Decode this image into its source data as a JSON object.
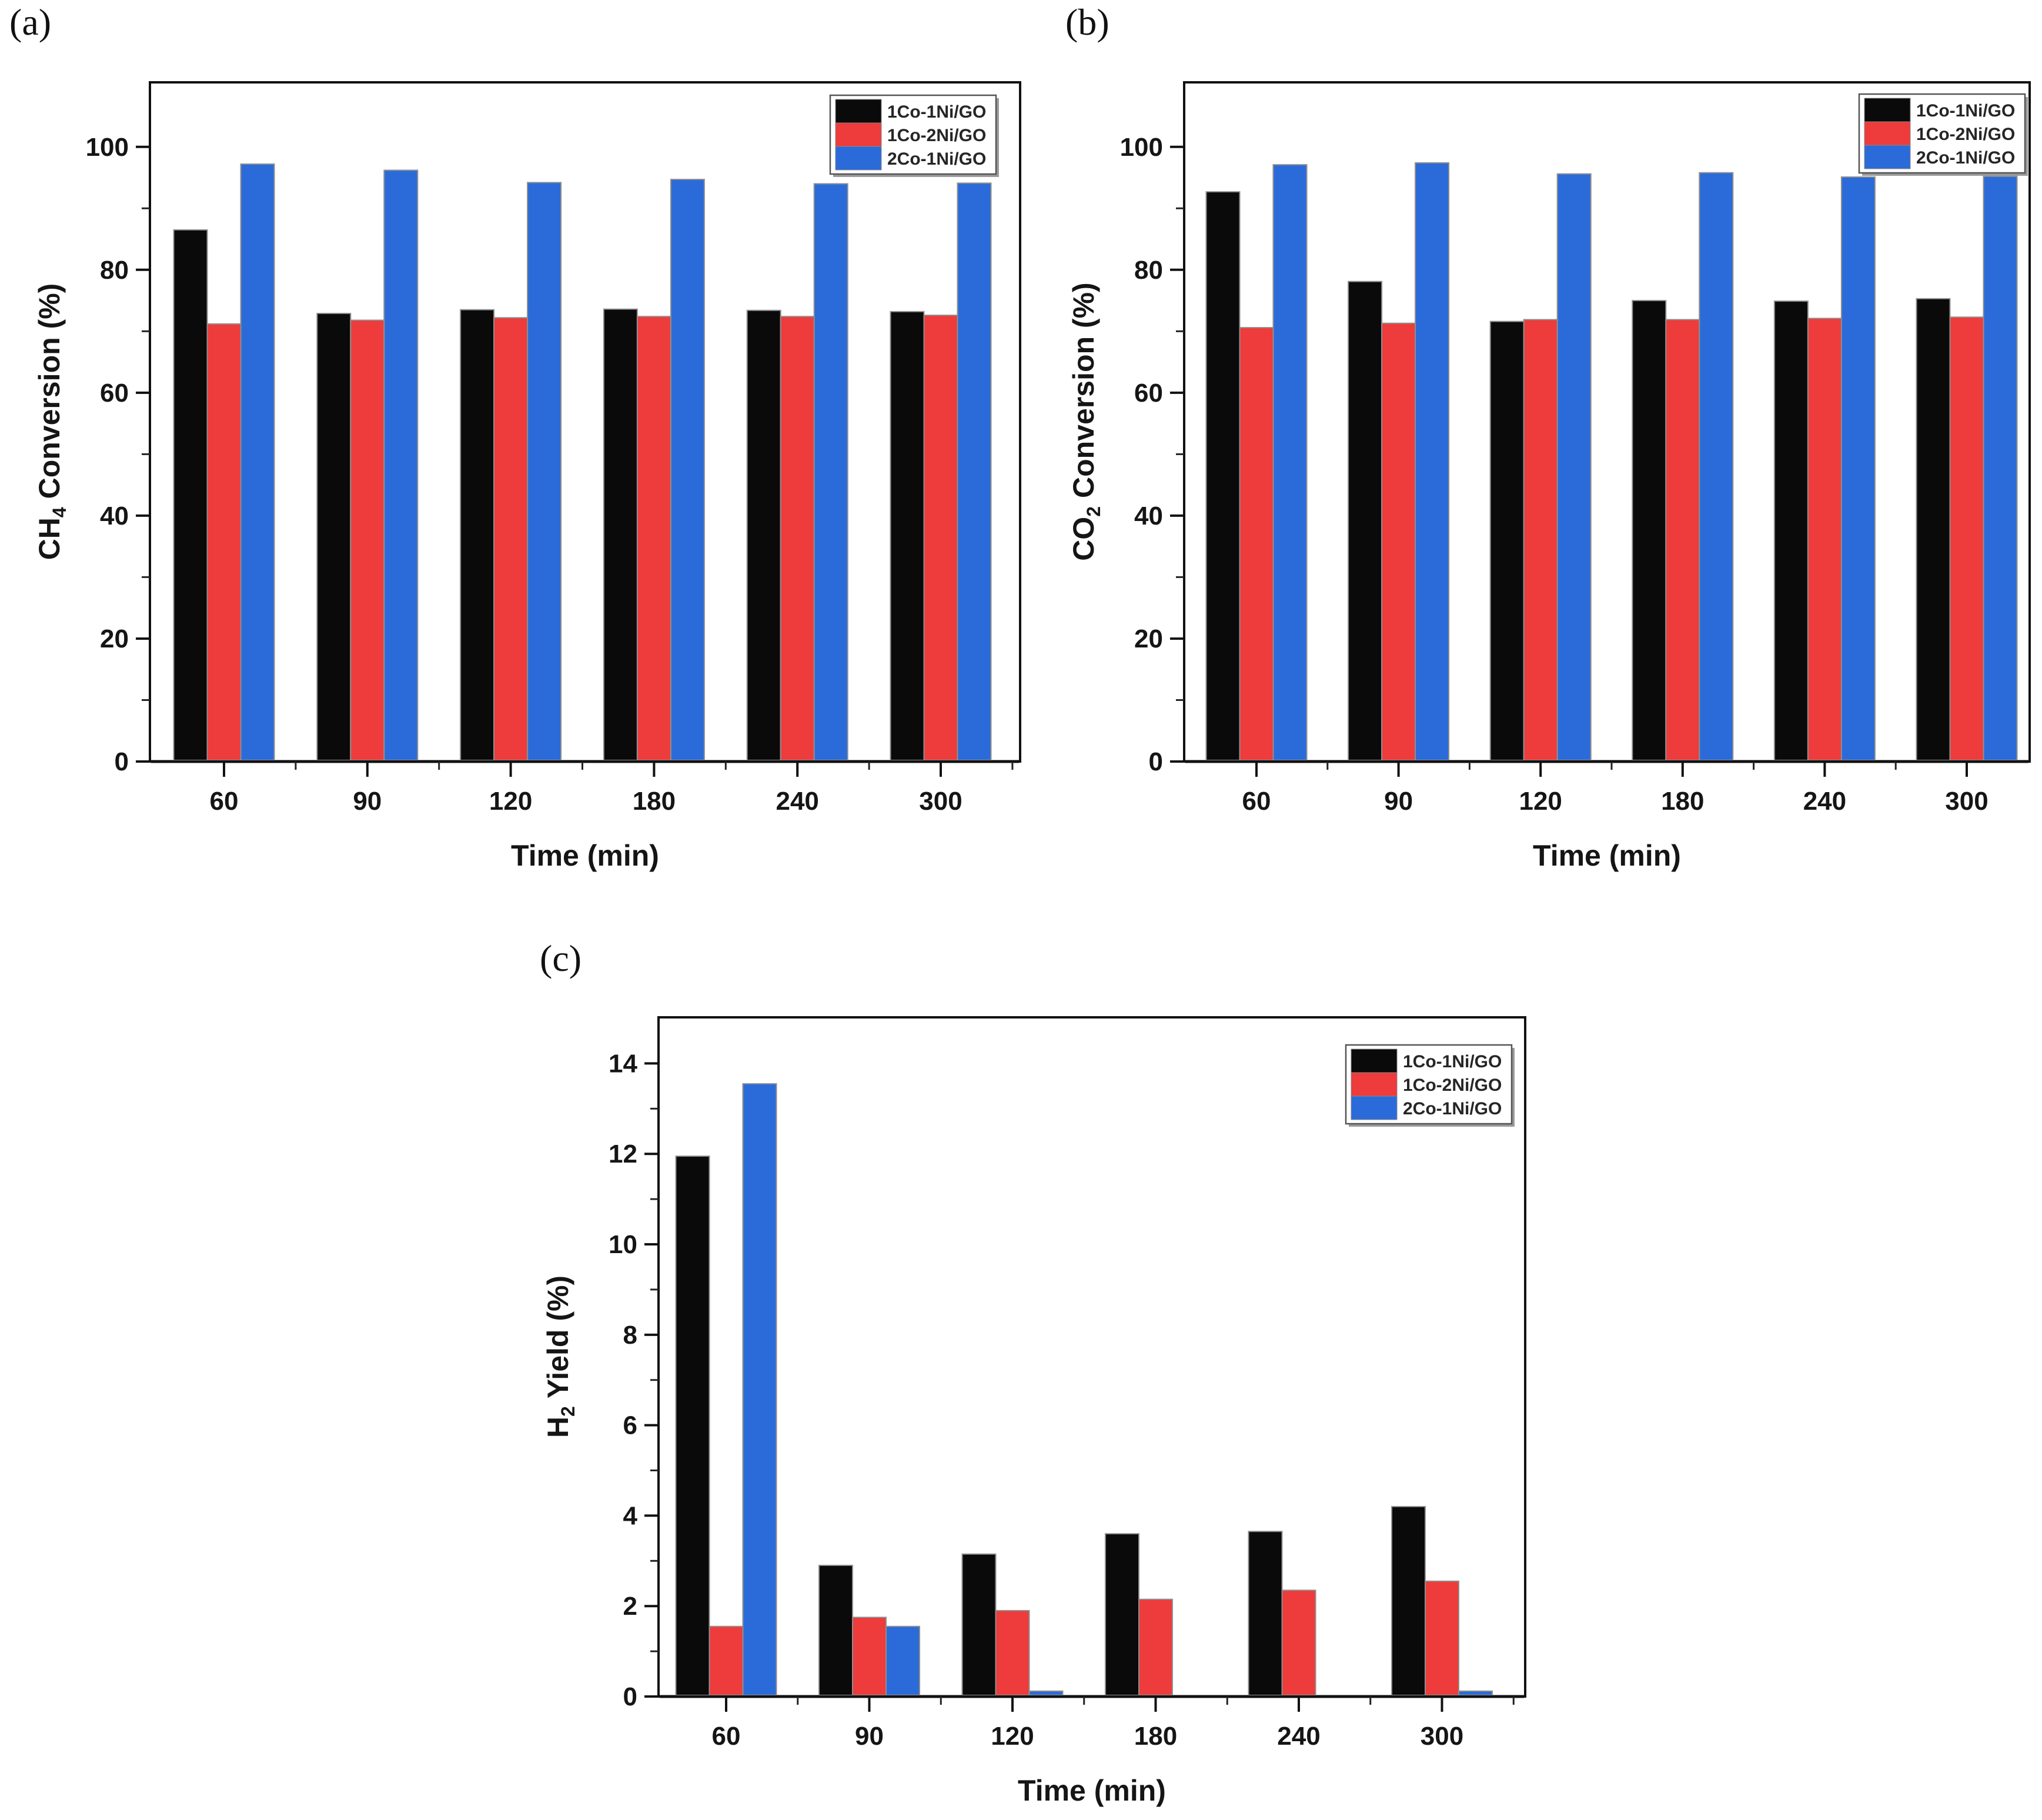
{
  "figure": {
    "background": "#ffffff",
    "series_colors": {
      "black": "#0a0a0a",
      "red": "#ee3b3b",
      "blue": "#2b6bd9"
    },
    "panel_labels": [
      "(a)",
      "(b)",
      "(c)"
    ]
  },
  "chart_data": [
    {
      "id": "a",
      "type": "bar",
      "panel_label": "(a)",
      "xlabel": "Time (min)",
      "ylabel": {
        "pre": "CH",
        "sub": "4",
        "post": " Conversion (%)"
      },
      "categories": [
        "60",
        "90",
        "120",
        "180",
        "240",
        "300"
      ],
      "series": [
        {
          "name": "1Co-1Ni/GO",
          "color": "#0a0a0a",
          "values": [
            86.5,
            72.9,
            73.5,
            73.6,
            73.4,
            73.2
          ]
        },
        {
          "name": "1Co-2Ni/GO",
          "color": "#ee3b3b",
          "values": [
            71.2,
            71.8,
            72.2,
            72.4,
            72.4,
            72.6
          ]
        },
        {
          "name": "2Co-1Ni/GO",
          "color": "#2b6bd9",
          "values": [
            97.2,
            96.2,
            94.2,
            94.7,
            94.0,
            94.1
          ]
        }
      ],
      "yticks": [
        0,
        20,
        40,
        60,
        80,
        100
      ],
      "yticks_minor": [
        10,
        30,
        50,
        70,
        90,
        110
      ],
      "ylim": [
        0,
        110.5
      ],
      "grid": false,
      "legend_position": "top-right-inside"
    },
    {
      "id": "b",
      "type": "bar",
      "panel_label": "(b)",
      "xlabel": "Time (min)",
      "ylabel": {
        "pre": "CO",
        "sub": "2",
        "post": " Conversion (%)"
      },
      "categories": [
        "60",
        "90",
        "120",
        "180",
        "240",
        "300"
      ],
      "series": [
        {
          "name": "1Co-1Ni/GO",
          "color": "#0a0a0a",
          "values": [
            92.7,
            78.1,
            71.6,
            75.0,
            74.9,
            75.3
          ]
        },
        {
          "name": "1Co-2Ni/GO",
          "color": "#ee3b3b",
          "values": [
            70.6,
            71.3,
            71.9,
            71.9,
            72.1,
            72.3
          ]
        },
        {
          "name": "2Co-1Ni/GO",
          "color": "#2b6bd9",
          "values": [
            97.1,
            97.4,
            95.6,
            95.8,
            95.1,
            95.2
          ]
        }
      ],
      "yticks": [
        0,
        20,
        40,
        60,
        80,
        100
      ],
      "yticks_minor": [
        10,
        30,
        50,
        70,
        90,
        110
      ],
      "ylim": [
        0,
        110.5
      ],
      "grid": false,
      "legend_position": "top-right-inside"
    },
    {
      "id": "c",
      "type": "bar",
      "panel_label": "(c)",
      "xlabel": "Time (min)",
      "ylabel": {
        "pre": "H",
        "sub": "2",
        "post": " Yield (%)"
      },
      "categories": [
        "60",
        "90",
        "120",
        "180",
        "240",
        "300"
      ],
      "series": [
        {
          "name": "1Co-1Ni/GO",
          "color": "#0a0a0a",
          "values": [
            11.95,
            2.9,
            3.15,
            3.6,
            3.65,
            4.2
          ]
        },
        {
          "name": "1Co-2Ni/GO",
          "color": "#ee3b3b",
          "values": [
            1.55,
            1.75,
            1.9,
            2.15,
            2.35,
            2.55
          ]
        },
        {
          "name": "2Co-1Ni/GO",
          "color": "#2b6bd9",
          "values": [
            13.55,
            1.55,
            0.12,
            0,
            0,
            0.12
          ]
        }
      ],
      "yticks": [
        0,
        2,
        4,
        6,
        8,
        10,
        12,
        14
      ],
      "yticks_minor": [
        1,
        3,
        5,
        7,
        9,
        11,
        13,
        15
      ],
      "ylim": [
        0,
        15.02
      ],
      "grid": false,
      "legend_position": "top-right-inside"
    }
  ]
}
